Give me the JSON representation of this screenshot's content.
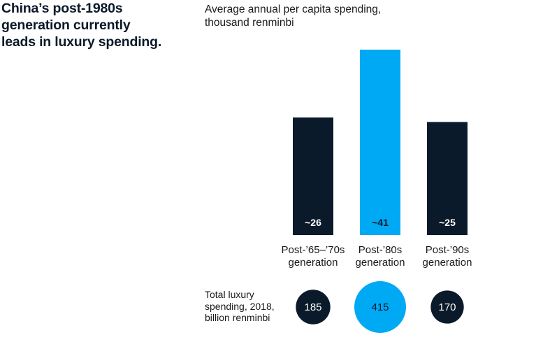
{
  "headline": {
    "line1": "China’s post-1980s",
    "line2": "generation currently",
    "line3": "leads in luxury spending."
  },
  "chart_data": {
    "type": "bar",
    "title": "Average annual per capita spending, thousand renminbi",
    "subtitle_lines": [
      "Average annual per capita spending,",
      "thousand renminbi"
    ],
    "categories": [
      {
        "line1": "Post-’65–’70s",
        "line2": "generation"
      },
      {
        "line1": "Post-’80s",
        "line2": "generation"
      },
      {
        "line1": "Post-’90s",
        "line2": "generation"
      }
    ],
    "values": [
      26,
      41,
      25
    ],
    "value_labels": [
      "~26",
      "~41",
      "~25"
    ],
    "ylim": [
      0,
      41
    ],
    "bar_colors": [
      "#0b1a2a",
      "#00a9f4",
      "#0b1a2a"
    ],
    "label_colors": [
      "#ffffff",
      "#0b1a2a",
      "#ffffff"
    ],
    "totals": {
      "label_lines": [
        "Total luxury",
        "spending, 2018,",
        "billion renminbi"
      ],
      "values": [
        "185",
        "415",
        "170"
      ],
      "scale_values": [
        185,
        415,
        170
      ]
    }
  }
}
